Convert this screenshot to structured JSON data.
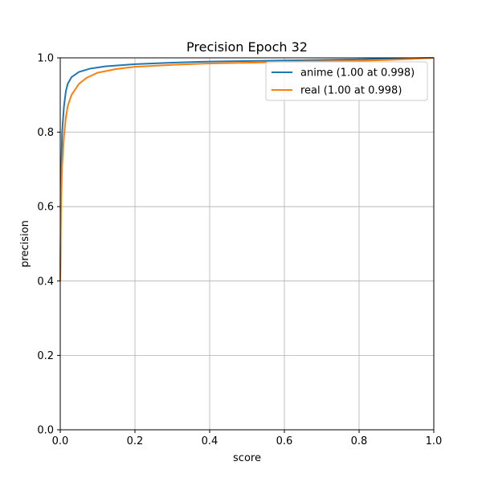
{
  "chart_data": {
    "type": "line",
    "title": "Precision Epoch 32",
    "xlabel": "score",
    "ylabel": "precision",
    "xlim": [
      0.0,
      1.0
    ],
    "ylim": [
      0.0,
      1.0
    ],
    "xticks": [
      "0.0",
      "0.2",
      "0.4",
      "0.6",
      "0.8",
      "1.0"
    ],
    "yticks": [
      "0.0",
      "0.2",
      "0.4",
      "0.6",
      "0.8",
      "1.0"
    ],
    "grid": true,
    "legend_position": "top-right",
    "series": [
      {
        "name": "anime (1.00 at 0.998)",
        "color": "#1f77b4",
        "x": [
          0.0,
          0.002,
          0.005,
          0.01,
          0.015,
          0.02,
          0.03,
          0.05,
          0.08,
          0.12,
          0.2,
          0.3,
          0.4,
          0.6,
          0.8,
          0.9,
          0.998,
          1.0
        ],
        "y": [
          0.4,
          0.66,
          0.8,
          0.87,
          0.91,
          0.93,
          0.948,
          0.962,
          0.971,
          0.977,
          0.983,
          0.987,
          0.99,
          0.993,
          0.996,
          0.998,
          1.0,
          1.0
        ]
      },
      {
        "name": "real (1.00 at 0.998)",
        "color": "#ff7f0e",
        "x": [
          0.0,
          0.002,
          0.005,
          0.01,
          0.015,
          0.02,
          0.03,
          0.05,
          0.07,
          0.1,
          0.15,
          0.2,
          0.3,
          0.4,
          0.6,
          0.8,
          0.9,
          0.998,
          1.0
        ],
        "y": [
          0.4,
          0.6,
          0.71,
          0.79,
          0.84,
          0.87,
          0.9,
          0.93,
          0.946,
          0.96,
          0.97,
          0.976,
          0.981,
          0.985,
          0.989,
          0.992,
          0.995,
          1.0,
          1.0
        ]
      }
    ]
  }
}
